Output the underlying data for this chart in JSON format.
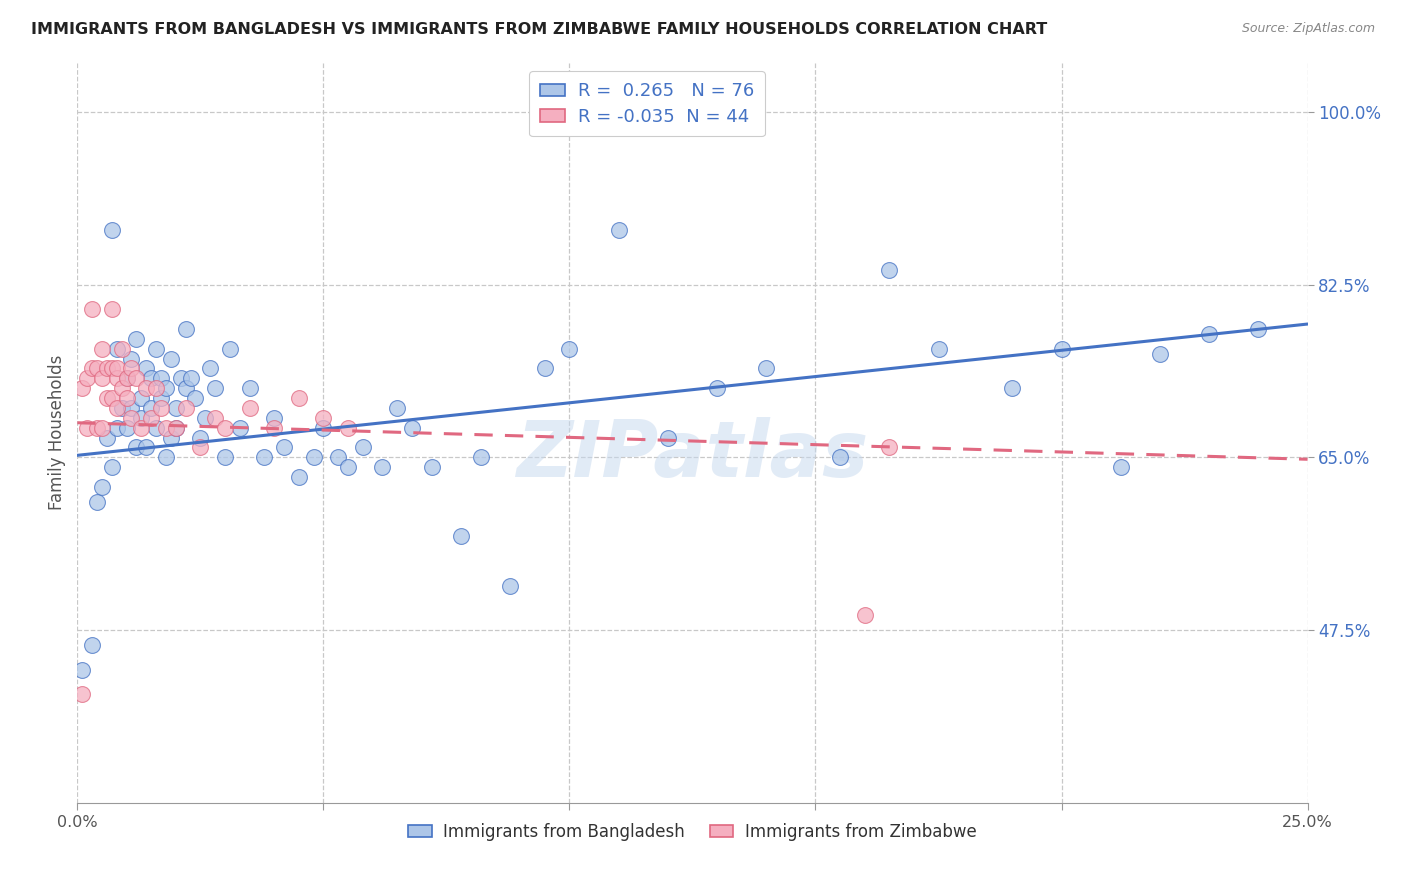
{
  "title": "IMMIGRANTS FROM BANGLADESH VS IMMIGRANTS FROM ZIMBABWE FAMILY HOUSEHOLDS CORRELATION CHART",
  "source": "Source: ZipAtlas.com",
  "ylabel_label": "Family Households",
  "x_min": 0.0,
  "x_max": 0.25,
  "y_min": 0.3,
  "y_max": 1.05,
  "x_ticks": [
    0.0,
    0.05,
    0.1,
    0.15,
    0.2,
    0.25
  ],
  "x_tick_labels": [
    "0.0%",
    "",
    "",
    "",
    "",
    "25.0%"
  ],
  "y_ticks": [
    0.475,
    0.65,
    0.825,
    1.0
  ],
  "y_tick_labels": [
    "47.5%",
    "65.0%",
    "82.5%",
    "100.0%"
  ],
  "legend_r_bangladesh": "0.265",
  "legend_n_bangladesh": "76",
  "legend_r_zimbabwe": "-0.035",
  "legend_n_zimbabwe": "44",
  "color_bangladesh": "#adc6e8",
  "color_zimbabwe": "#f5afc0",
  "color_trendline_bangladesh": "#4472c4",
  "color_trendline_zimbabwe": "#e06880",
  "watermark": "ZIPatlas",
  "bangladesh_x": [
    0.001,
    0.003,
    0.004,
    0.005,
    0.006,
    0.007,
    0.007,
    0.008,
    0.008,
    0.009,
    0.01,
    0.01,
    0.011,
    0.011,
    0.012,
    0.012,
    0.013,
    0.013,
    0.014,
    0.014,
    0.015,
    0.015,
    0.016,
    0.016,
    0.017,
    0.017,
    0.018,
    0.018,
    0.019,
    0.019,
    0.02,
    0.02,
    0.021,
    0.022,
    0.022,
    0.023,
    0.024,
    0.025,
    0.026,
    0.027,
    0.028,
    0.03,
    0.031,
    0.033,
    0.035,
    0.038,
    0.04,
    0.042,
    0.045,
    0.048,
    0.05,
    0.053,
    0.055,
    0.058,
    0.062,
    0.065,
    0.068,
    0.072,
    0.078,
    0.082,
    0.088,
    0.095,
    0.1,
    0.11,
    0.12,
    0.13,
    0.14,
    0.155,
    0.165,
    0.175,
    0.19,
    0.2,
    0.212,
    0.22,
    0.23,
    0.24
  ],
  "bangladesh_y": [
    0.435,
    0.46,
    0.605,
    0.62,
    0.67,
    0.64,
    0.88,
    0.68,
    0.76,
    0.7,
    0.68,
    0.73,
    0.75,
    0.7,
    0.77,
    0.66,
    0.71,
    0.69,
    0.66,
    0.74,
    0.7,
    0.73,
    0.68,
    0.76,
    0.73,
    0.71,
    0.65,
    0.72,
    0.67,
    0.75,
    0.7,
    0.68,
    0.73,
    0.72,
    0.78,
    0.73,
    0.71,
    0.67,
    0.69,
    0.74,
    0.72,
    0.65,
    0.76,
    0.68,
    0.72,
    0.65,
    0.69,
    0.66,
    0.63,
    0.65,
    0.68,
    0.65,
    0.64,
    0.66,
    0.64,
    0.7,
    0.68,
    0.64,
    0.57,
    0.65,
    0.52,
    0.74,
    0.76,
    0.88,
    0.67,
    0.72,
    0.74,
    0.65,
    0.84,
    0.76,
    0.72,
    0.76,
    0.64,
    0.755,
    0.775,
    0.78
  ],
  "zimbabwe_x": [
    0.001,
    0.001,
    0.002,
    0.002,
    0.003,
    0.003,
    0.004,
    0.004,
    0.005,
    0.005,
    0.005,
    0.006,
    0.006,
    0.007,
    0.007,
    0.007,
    0.008,
    0.008,
    0.008,
    0.009,
    0.009,
    0.01,
    0.01,
    0.011,
    0.011,
    0.012,
    0.013,
    0.014,
    0.015,
    0.016,
    0.017,
    0.018,
    0.02,
    0.022,
    0.025,
    0.028,
    0.03,
    0.035,
    0.04,
    0.045,
    0.05,
    0.055,
    0.16,
    0.165
  ],
  "zimbabwe_y": [
    0.41,
    0.72,
    0.68,
    0.73,
    0.8,
    0.74,
    0.74,
    0.68,
    0.68,
    0.73,
    0.76,
    0.71,
    0.74,
    0.71,
    0.74,
    0.8,
    0.7,
    0.73,
    0.74,
    0.72,
    0.76,
    0.71,
    0.73,
    0.69,
    0.74,
    0.73,
    0.68,
    0.72,
    0.69,
    0.72,
    0.7,
    0.68,
    0.68,
    0.7,
    0.66,
    0.69,
    0.68,
    0.7,
    0.68,
    0.71,
    0.69,
    0.68,
    0.49,
    0.66
  ],
  "grid_color": "#c8c8c8",
  "background_color": "#ffffff",
  "trendline_bd_x0": 0.0,
  "trendline_bd_y0": 0.652,
  "trendline_bd_x1": 0.25,
  "trendline_bd_y1": 0.785,
  "trendline_zw_x0": 0.0,
  "trendline_zw_y0": 0.685,
  "trendline_zw_x1": 0.25,
  "trendline_zw_y1": 0.648
}
